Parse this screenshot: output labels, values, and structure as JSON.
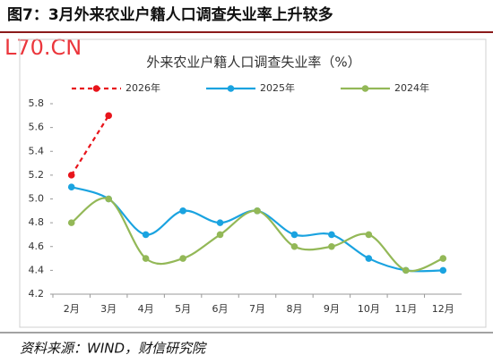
{
  "header": {
    "title": "图7：3月外来农业户籍人口调查失业率上升较多",
    "watermark": "L70.CN"
  },
  "footer": {
    "source": "资料来源：WIND，财信研究院"
  },
  "chart_data": {
    "type": "line",
    "title": "外来农业户籍人口调查失业率（%）",
    "categories": [
      "2月",
      "3月",
      "4月",
      "5月",
      "6月",
      "7月",
      "8月",
      "9月",
      "10月",
      "11月",
      "12月"
    ],
    "series": [
      {
        "name": "2026年",
        "color": "#e8141b",
        "dashed": true,
        "values": [
          5.2,
          5.7,
          null,
          null,
          null,
          null,
          null,
          null,
          null,
          null,
          null
        ]
      },
      {
        "name": "2025年",
        "color": "#1aa3e0",
        "values": [
          5.1,
          5.0,
          4.7,
          4.9,
          4.8,
          4.9,
          4.7,
          4.7,
          4.5,
          4.4,
          4.4
        ]
      },
      {
        "name": "2024年",
        "color": "#93b857",
        "values": [
          4.8,
          5.0,
          4.5,
          4.5,
          4.7,
          4.9,
          4.6,
          4.6,
          4.7,
          4.4,
          4.5
        ]
      }
    ],
    "ylim": [
      4.2,
      5.8
    ],
    "yticks": [
      4.2,
      4.4,
      4.6,
      4.8,
      {
        "value": 5,
        "label": "5.0"
      },
      5.2,
      5.4,
      5.6,
      5.8
    ],
    "grid": false
  }
}
